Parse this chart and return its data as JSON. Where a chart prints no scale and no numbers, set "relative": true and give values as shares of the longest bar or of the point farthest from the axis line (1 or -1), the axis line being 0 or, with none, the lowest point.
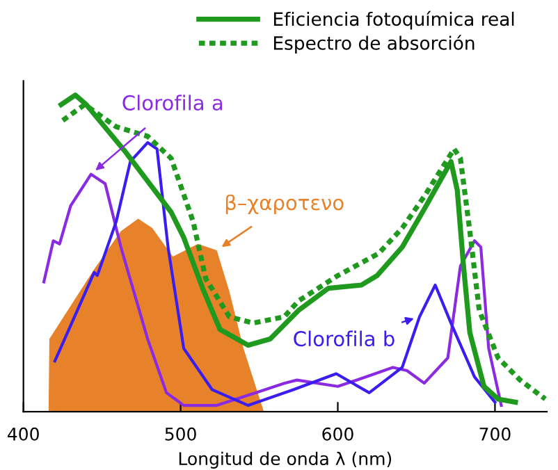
{
  "chart_data": {
    "type": "line",
    "relative": true,
    "xlabel": "Longitud de onda λ (nm)",
    "xlim": [
      400,
      733
    ],
    "xticks": [
      400,
      500,
      600,
      700
    ],
    "grid": false,
    "legend": "top",
    "tick_labels": "x",
    "series": [
      {
        "name": "Eficiencia fotoquímica real",
        "color": "#1f9a1f",
        "line_style": "solid",
        "x": [
          424,
          433,
          440,
          465,
          494,
          502,
          514,
          525,
          543,
          557,
          575,
          594,
          615,
          625,
          641,
          655,
          672,
          676,
          680,
          684,
          693,
          702,
          713
        ],
        "values": [
          0.97,
          1.0,
          0.97,
          0.82,
          0.63,
          0.55,
          0.39,
          0.26,
          0.21,
          0.23,
          0.32,
          0.39,
          0.4,
          0.43,
          0.52,
          0.64,
          0.79,
          0.7,
          0.46,
          0.25,
          0.08,
          0.04,
          0.03
        ]
      },
      {
        "name": "Espectro de absorción",
        "color": "#1f9a1f",
        "line_style": "dotted",
        "x": [
          425,
          439,
          459,
          479,
          494,
          508,
          516,
          531,
          546,
          566,
          575,
          600,
          626,
          641,
          655,
          674,
          678,
          684,
          690,
          702,
          716,
          732
        ],
        "values": [
          0.92,
          0.97,
          0.9,
          0.87,
          0.8,
          0.6,
          0.42,
          0.3,
          0.28,
          0.3,
          0.35,
          0.43,
          0.5,
          0.58,
          0.68,
          0.83,
          0.8,
          0.57,
          0.32,
          0.17,
          0.1,
          0.04
        ]
      },
      {
        "type": "area",
        "color": "#e8822a",
        "x": [
          416,
          416.5,
          445,
          462,
          473,
          482,
          495,
          511,
          523,
          531,
          540,
          551,
          553
        ],
        "values": [
          0,
          0.23,
          0.45,
          0.57,
          0.61,
          0.58,
          0.49,
          0.53,
          0.51,
          0.38,
          0.2,
          0.03,
          0
        ]
      },
      {
        "color": "#8a2be2",
        "line_style": "solid",
        "x": [
          413,
          419,
          423,
          430,
          443,
          452,
          462,
          479,
          491,
          502,
          523,
          548,
          566,
          574,
          600,
          618,
          635,
          644,
          655,
          670,
          678,
          687,
          691,
          696,
          704
        ],
        "values": [
          0.41,
          0.54,
          0.53,
          0.65,
          0.75,
          0.72,
          0.52,
          0.23,
          0.06,
          0.02,
          0.02,
          0.06,
          0.09,
          0.1,
          0.08,
          0.11,
          0.14,
          0.13,
          0.09,
          0.17,
          0.46,
          0.54,
          0.52,
          0.2,
          0.02
        ]
      },
      {
        "color": "#3a1ef0",
        "line_style": "solid",
        "x": [
          420,
          445,
          447,
          459,
          468,
          479,
          485,
          492,
          502,
          520,
          543,
          572,
          599,
          620,
          641,
          652,
          662,
          672,
          687,
          700
        ],
        "values": [
          0.16,
          0.44,
          0.43,
          0.6,
          0.79,
          0.85,
          0.83,
          0.52,
          0.2,
          0.07,
          0.02,
          0.07,
          0.12,
          0.06,
          0.14,
          0.3,
          0.4,
          0.28,
          0.11,
          0.03
        ]
      }
    ],
    "annotations": [
      {
        "text": "Clorofila a",
        "x": 443,
        "y": 0.75
      },
      {
        "text": "β–χαροτενο",
        "x": 523,
        "y": 0.51
      },
      {
        "text": "Clorofila b",
        "x": 652,
        "y": 0.3
      }
    ]
  }
}
